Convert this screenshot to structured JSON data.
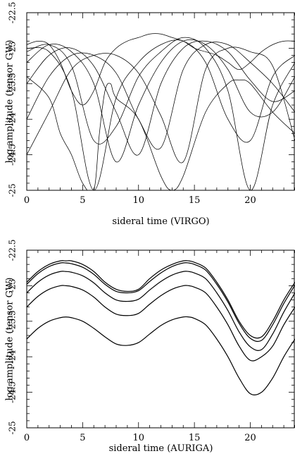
{
  "chart_data": [
    {
      "type": "line",
      "title": "",
      "xlabel": "sideral time (VIRGO)",
      "ylabel": "log amplitude (tensor GW)",
      "xlim": [
        0,
        24
      ],
      "ylim": [
        -25,
        -22.5
      ],
      "x_ticks": [
        "0",
        "5",
        "10",
        "15",
        "20"
      ],
      "y_ticks": [
        "-25",
        "-24.5",
        "-24",
        "-23.5",
        "-23",
        "-22.5"
      ],
      "grid": false,
      "legend": "none",
      "description_of_series": "family of curves for different source declinations",
      "series": [
        {
          "x": [
            0,
            2,
            4,
            6,
            8,
            10,
            12,
            14,
            16,
            18,
            20,
            22,
            24
          ],
          "y": [
            -23.05,
            -22.95,
            -23.25,
            -24.3,
            -24.1,
            -23.4,
            -23.05,
            -22.85,
            -23.0,
            -23.6,
            -25.0,
            -23.8,
            -23.2
          ]
        },
        {
          "x": [
            0,
            2,
            4,
            6,
            8,
            10,
            12,
            14,
            16,
            18,
            20,
            22,
            24
          ],
          "y": [
            -23.2,
            -22.95,
            -23.05,
            -23.5,
            -24.6,
            -23.8,
            -23.2,
            -22.9,
            -22.95,
            -23.3,
            -23.9,
            -23.9,
            -23.4
          ]
        },
        {
          "x": [
            0,
            2,
            4,
            6,
            8,
            10,
            12,
            14,
            16,
            18,
            20,
            22,
            24
          ],
          "y": [
            -23.5,
            -23.1,
            -23.0,
            -23.25,
            -23.9,
            -24.5,
            -23.5,
            -23.0,
            -22.9,
            -23.05,
            -23.45,
            -23.75,
            -23.6
          ]
        },
        {
          "x": [
            0,
            2,
            4,
            6,
            8,
            10,
            12,
            14,
            16,
            18,
            20,
            22,
            24
          ],
          "y": [
            -24.0,
            -23.4,
            -23.1,
            -23.1,
            -23.35,
            -24.0,
            -24.4,
            -23.3,
            -22.95,
            -22.95,
            -23.2,
            -23.5,
            -23.9
          ]
        },
        {
          "x": [
            0,
            2,
            4,
            6,
            8,
            10,
            12,
            14,
            16,
            18,
            20,
            22,
            24
          ],
          "y": [
            -24.5,
            -23.9,
            -23.3,
            -23.1,
            -23.1,
            -23.35,
            -23.95,
            -24.6,
            -23.3,
            -23.0,
            -23.05,
            -23.25,
            -24.3
          ]
        },
        {
          "x": [
            0,
            2,
            4,
            6,
            8,
            10,
            12,
            14,
            16,
            18,
            20,
            22,
            24
          ],
          "y": [
            -23.0,
            -23.05,
            -23.6,
            -25.0,
            -23.7,
            -23.2,
            -22.95,
            -22.9,
            -23.2,
            -24.0,
            -24.3,
            -23.4,
            -23.1
          ]
        },
        {
          "x": [
            0,
            1,
            2,
            3,
            4,
            5,
            6,
            7,
            8,
            9,
            10,
            11,
            12,
            13,
            14,
            15,
            16,
            17,
            18,
            19,
            20,
            21,
            22,
            23,
            24
          ],
          "y": [
            -22.95,
            -22.9,
            -22.95,
            -23.2,
            -23.6,
            -23.8,
            -23.6,
            -23.2,
            -23.0,
            -22.9,
            -22.85,
            -22.8,
            -22.8,
            -22.85,
            -22.9,
            -23.0,
            -23.05,
            -23.1,
            -23.2,
            -23.3,
            -23.2,
            -23.05,
            -22.95,
            -22.9,
            -22.9
          ]
        },
        {
          "x": [
            0,
            2,
            3,
            4,
            5,
            6,
            6.5,
            7,
            7.5,
            8,
            10,
            12,
            13,
            14,
            16,
            18,
            19,
            20,
            22,
            24
          ],
          "y": [
            -23.4,
            -23.7,
            -24.2,
            -24.5,
            -24.9,
            -25.0,
            -24.2,
            -23.6,
            -23.5,
            -23.7,
            -24.0,
            -24.8,
            -25.0,
            -24.8,
            -23.9,
            -23.5,
            -23.45,
            -23.5,
            -23.9,
            -24.2
          ]
        }
      ]
    },
    {
      "type": "line",
      "title": "",
      "xlabel": "sideral time (AURIGA)",
      "ylabel": "log amplitude (tensor GW)",
      "xlim": [
        0,
        24
      ],
      "ylim": [
        -25,
        -22.5
      ],
      "x_ticks": [
        "0",
        "5",
        "10",
        "15",
        "20"
      ],
      "y_ticks": [
        "-25",
        "-24.5",
        "-24",
        "-23.5",
        "-23",
        "-22.5"
      ],
      "grid": false,
      "legend": "none",
      "series": [
        {
          "x": [
            0,
            1,
            2,
            3,
            3.5,
            4,
            5,
            6,
            7,
            8,
            9,
            10,
            11,
            12,
            13,
            14,
            14.5,
            15,
            16,
            17,
            18,
            19,
            20,
            21,
            22,
            23,
            24
          ],
          "y": [
            -22.95,
            -22.8,
            -22.7,
            -22.65,
            -22.65,
            -22.65,
            -22.7,
            -22.8,
            -22.95,
            -23.05,
            -23.08,
            -23.05,
            -22.9,
            -22.78,
            -22.7,
            -22.65,
            -22.65,
            -22.67,
            -22.75,
            -22.95,
            -23.2,
            -23.5,
            -23.7,
            -23.72,
            -23.5,
            -23.2,
            -22.95
          ]
        },
        {
          "x": [
            0,
            1,
            2,
            3,
            3.5,
            4,
            5,
            6,
            7,
            8,
            9,
            10,
            11,
            12,
            13,
            14,
            14.5,
            15,
            16,
            17,
            18,
            19,
            20,
            21,
            22,
            23,
            24
          ],
          "y": [
            -22.98,
            -22.83,
            -22.73,
            -22.68,
            -22.68,
            -22.69,
            -22.74,
            -22.84,
            -22.98,
            -23.08,
            -23.1,
            -23.07,
            -22.94,
            -22.82,
            -22.73,
            -22.68,
            -22.68,
            -22.7,
            -22.78,
            -22.98,
            -23.23,
            -23.53,
            -23.74,
            -23.77,
            -23.55,
            -23.25,
            -22.99
          ]
        },
        {
          "x": [
            0,
            1,
            2,
            3,
            3.5,
            4,
            5,
            6,
            7,
            8,
            9,
            10,
            11,
            12,
            13,
            14,
            14.5,
            15,
            16,
            17,
            18,
            19,
            20,
            21,
            22,
            23,
            24
          ],
          "y": [
            -23.1,
            -22.95,
            -22.85,
            -22.8,
            -22.8,
            -22.81,
            -22.86,
            -22.96,
            -23.1,
            -23.2,
            -23.22,
            -23.19,
            -23.06,
            -22.94,
            -22.85,
            -22.8,
            -22.8,
            -22.82,
            -22.9,
            -23.1,
            -23.35,
            -23.65,
            -23.86,
            -23.9,
            -23.68,
            -23.37,
            -23.1
          ]
        },
        {
          "x": [
            0,
            1,
            2,
            3,
            3.5,
            4,
            5,
            6,
            7,
            8,
            9,
            10,
            11,
            12,
            13,
            14,
            14.5,
            15,
            16,
            17,
            18,
            19,
            20,
            21,
            22,
            23,
            24
          ],
          "y": [
            -23.3,
            -23.15,
            -23.05,
            -23.0,
            -23.0,
            -23.01,
            -23.06,
            -23.16,
            -23.3,
            -23.4,
            -23.42,
            -23.39,
            -23.26,
            -23.14,
            -23.05,
            -23.0,
            -23.0,
            -23.02,
            -23.1,
            -23.3,
            -23.55,
            -23.85,
            -24.05,
            -24.0,
            -23.85,
            -23.55,
            -23.3
          ]
        },
        {
          "x": [
            0,
            1,
            2,
            3,
            3.5,
            4,
            5,
            6,
            7,
            8,
            9,
            10,
            11,
            12,
            13,
            14,
            14.5,
            15,
            16,
            17,
            18,
            19,
            20,
            21,
            22,
            23,
            24
          ],
          "y": [
            -23.75,
            -23.6,
            -23.5,
            -23.45,
            -23.44,
            -23.45,
            -23.5,
            -23.6,
            -23.72,
            -23.82,
            -23.84,
            -23.8,
            -23.68,
            -23.56,
            -23.48,
            -23.44,
            -23.44,
            -23.46,
            -23.55,
            -23.75,
            -24.0,
            -24.3,
            -24.52,
            -24.5,
            -24.3,
            -24.0,
            -23.75
          ]
        }
      ]
    }
  ]
}
